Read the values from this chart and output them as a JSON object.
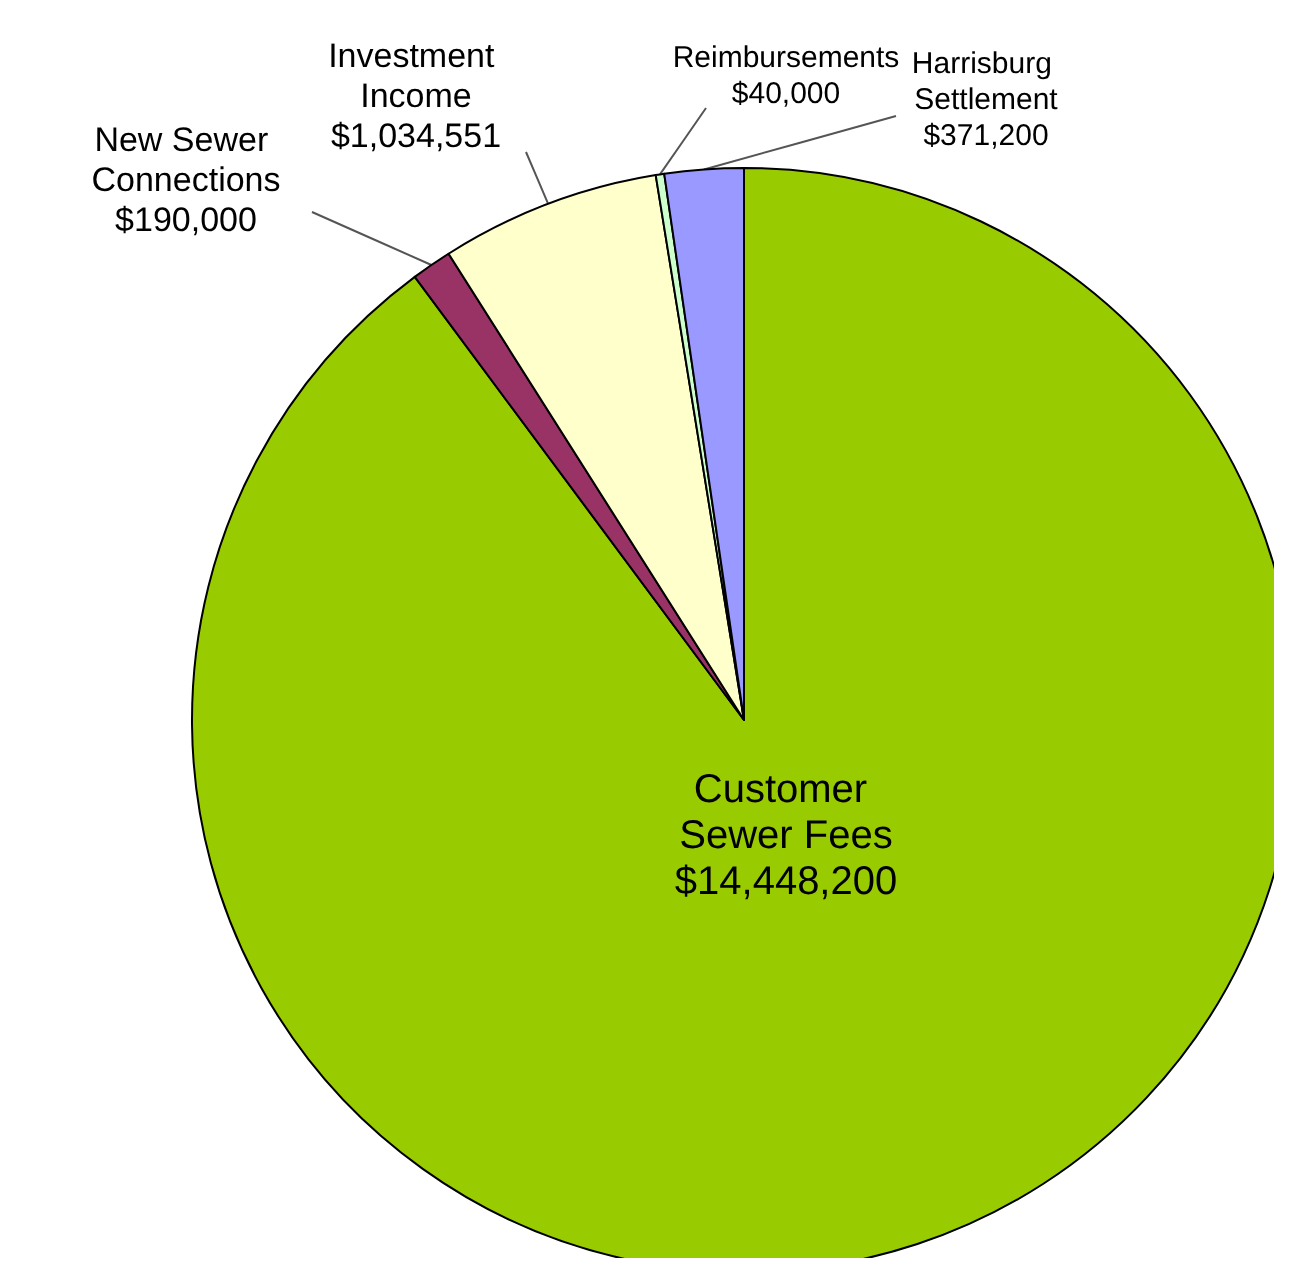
{
  "chart_data": {
    "type": "pie",
    "categories": [
      "Customer Sewer Fees",
      "New Sewer Connections",
      "Investment Income",
      "Reimbursements",
      "Harrisburg Settlement"
    ],
    "values": [
      14448200,
      190000,
      1034551,
      40000,
      371200
    ],
    "value_labels": [
      "$14,448,200",
      "$190,000",
      "$1,034,551",
      "$40,000",
      "$371,200"
    ],
    "colors": [
      "#99cc00",
      "#993366",
      "#ffffcc",
      "#ccffcc",
      "#9999ff"
    ],
    "legend": false
  }
}
